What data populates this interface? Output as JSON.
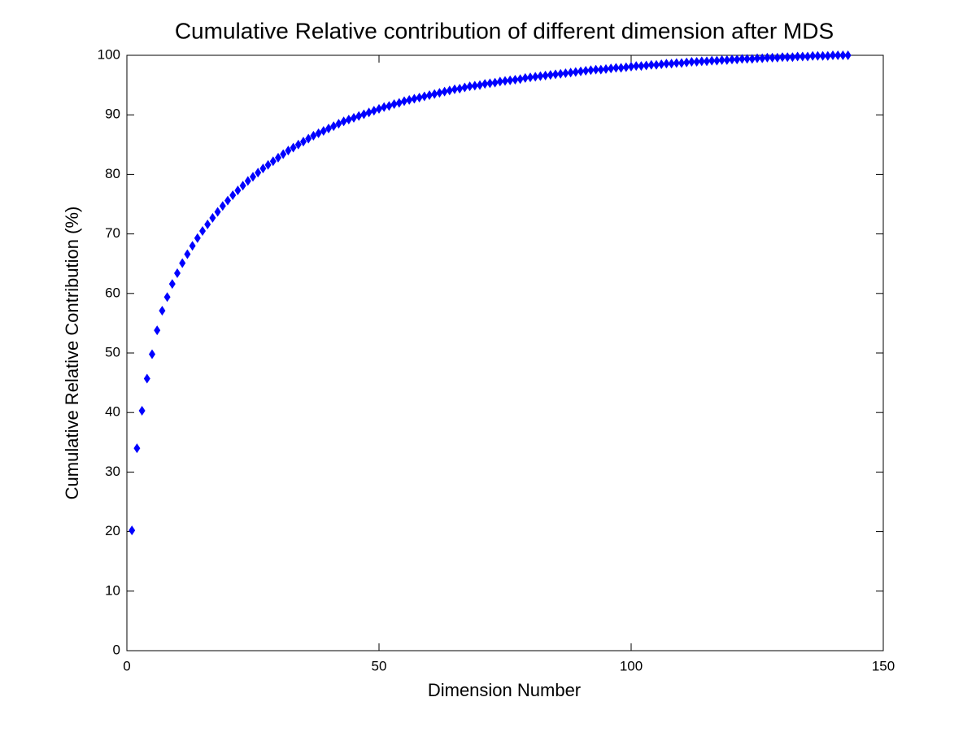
{
  "chart_data": {
    "type": "scatter",
    "title": "Cumulative Relative contribution of different dimension after MDS",
    "xlabel": "Dimension Number",
    "ylabel": "Cumulative Relative Contribution (%)",
    "marker": "diamond",
    "grid": false,
    "xlim": [
      0,
      150
    ],
    "xticks": [
      0,
      50,
      100,
      150
    ],
    "ylim": [
      0,
      100
    ],
    "yticks": [
      0,
      10,
      20,
      30,
      40,
      50,
      60,
      70,
      80,
      90,
      100
    ],
    "series": [
      {
        "color": "#0000ff",
        "x": [
          1,
          2,
          3,
          4,
          5,
          6,
          7,
          8,
          9,
          10,
          11,
          12,
          13,
          14,
          15,
          16,
          17,
          18,
          19,
          20,
          21,
          22,
          23,
          24,
          25,
          26,
          27,
          28,
          29,
          30,
          31,
          32,
          33,
          34,
          35,
          36,
          37,
          38,
          39,
          40,
          41,
          42,
          43,
          44,
          45,
          46,
          47,
          48,
          49,
          50,
          51,
          52,
          53,
          54,
          55,
          56,
          57,
          58,
          59,
          60,
          61,
          62,
          63,
          64,
          65,
          66,
          67,
          68,
          69,
          70,
          71,
          72,
          73,
          74,
          75,
          76,
          77,
          78,
          79,
          80,
          81,
          82,
          83,
          84,
          85,
          86,
          87,
          88,
          89,
          90,
          91,
          92,
          93,
          94,
          95,
          96,
          97,
          98,
          99,
          100,
          101,
          102,
          103,
          104,
          105,
          106,
          107,
          108,
          109,
          110,
          111,
          112,
          113,
          114,
          115,
          116,
          117,
          118,
          119,
          120,
          121,
          122,
          123,
          124,
          125,
          126,
          127,
          128,
          129,
          130,
          131,
          132,
          133,
          134,
          135,
          136,
          137,
          138,
          139,
          140,
          141,
          142,
          143
        ],
        "values": [
          20.2,
          34.0,
          40.3,
          45.7,
          49.8,
          53.8,
          57.1,
          59.4,
          61.6,
          63.4,
          65.1,
          66.6,
          68.0,
          69.3,
          70.5,
          71.6,
          72.7,
          73.7,
          74.7,
          75.6,
          76.5,
          77.3,
          78.1,
          78.9,
          79.6,
          80.3,
          81.0,
          81.6,
          82.2,
          82.8,
          83.4,
          84.0,
          84.5,
          85.0,
          85.5,
          86.0,
          86.5,
          86.9,
          87.3,
          87.7,
          88.1,
          88.5,
          88.9,
          89.2,
          89.5,
          89.8,
          90.1,
          90.4,
          90.7,
          91.0,
          91.3,
          91.5,
          91.8,
          92.0,
          92.3,
          92.5,
          92.7,
          92.9,
          93.1,
          93.3,
          93.5,
          93.7,
          93.9,
          94.1,
          94.3,
          94.4,
          94.6,
          94.8,
          94.9,
          95.0,
          95.2,
          95.3,
          95.4,
          95.6,
          95.7,
          95.8,
          95.9,
          96.0,
          96.2,
          96.3,
          96.4,
          96.5,
          96.6,
          96.7,
          96.8,
          96.9,
          97.0,
          97.1,
          97.2,
          97.3,
          97.4,
          97.5,
          97.6,
          97.6,
          97.7,
          97.8,
          97.9,
          97.9,
          98.0,
          98.1,
          98.2,
          98.2,
          98.3,
          98.4,
          98.4,
          98.5,
          98.6,
          98.6,
          98.7,
          98.7,
          98.8,
          98.9,
          98.9,
          99.0,
          99.0,
          99.1,
          99.1,
          99.2,
          99.2,
          99.3,
          99.3,
          99.4,
          99.4,
          99.4,
          99.5,
          99.5,
          99.6,
          99.6,
          99.6,
          99.7,
          99.7,
          99.7,
          99.8,
          99.8,
          99.8,
          99.9,
          99.9,
          99.9,
          99.9,
          100,
          100,
          100,
          100
        ]
      }
    ]
  }
}
